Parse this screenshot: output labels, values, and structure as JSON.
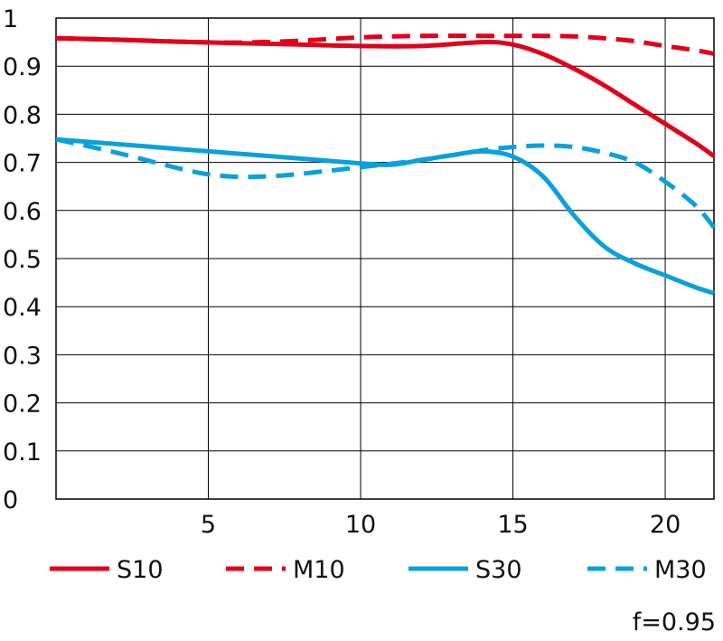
{
  "chart_data": {
    "type": "line",
    "xlim": [
      0,
      21.6
    ],
    "ylim": [
      0,
      1
    ],
    "x_ticks": [
      5,
      10,
      15,
      20
    ],
    "x_tick_labels": [
      "5",
      "10",
      "15",
      "20"
    ],
    "y_ticks": [
      0,
      0.1,
      0.2,
      0.3,
      0.4,
      0.5,
      0.6,
      0.7,
      0.8,
      0.9,
      1
    ],
    "y_tick_labels": [
      "0",
      "0.1",
      "0.2",
      "0.3",
      "0.4",
      "0.5",
      "0.6",
      "0.7",
      "0.8",
      "0.9",
      "1"
    ],
    "grid": true,
    "legend_position": "bottom",
    "note": "f=0.95",
    "series": [
      {
        "name": "S10",
        "color": "#e2001a",
        "dash": "solid",
        "x": [
          0,
          2,
          4,
          6,
          8,
          10,
          12,
          14,
          15,
          16,
          17,
          18,
          19,
          20,
          21,
          21.6
        ],
        "y": [
          0.958,
          0.955,
          0.951,
          0.948,
          0.945,
          0.942,
          0.942,
          0.95,
          0.945,
          0.925,
          0.895,
          0.86,
          0.82,
          0.78,
          0.74,
          0.713
        ]
      },
      {
        "name": "M10",
        "color": "#e2001a",
        "dash": "dashed",
        "x": [
          0,
          2,
          4,
          6,
          8,
          10,
          12,
          14,
          15,
          16,
          17,
          18,
          19,
          20,
          21,
          21.6
        ],
        "y": [
          0.958,
          0.955,
          0.951,
          0.949,
          0.953,
          0.96,
          0.963,
          0.963,
          0.963,
          0.963,
          0.962,
          0.958,
          0.952,
          0.942,
          0.933,
          0.926
        ]
      },
      {
        "name": "S30",
        "color": "#0aa0dc",
        "dash": "solid",
        "x": [
          0,
          2,
          4,
          6,
          8,
          10,
          11,
          12,
          13,
          14,
          15,
          16,
          17,
          18,
          19,
          20,
          21,
          21.6
        ],
        "y": [
          0.748,
          0.738,
          0.728,
          0.718,
          0.708,
          0.698,
          0.695,
          0.705,
          0.715,
          0.723,
          0.712,
          0.67,
          0.59,
          0.525,
          0.49,
          0.465,
          0.44,
          0.428
        ]
      },
      {
        "name": "M30",
        "color": "#0aa0dc",
        "dash": "dashed",
        "x": [
          0,
          2,
          4,
          5,
          6,
          7,
          8,
          10,
          12,
          14,
          15,
          16,
          17,
          18,
          19,
          20,
          21,
          21.6
        ],
        "y": [
          0.748,
          0.72,
          0.688,
          0.675,
          0.67,
          0.671,
          0.676,
          0.69,
          0.705,
          0.725,
          0.732,
          0.735,
          0.732,
          0.72,
          0.7,
          0.66,
          0.61,
          0.565
        ]
      }
    ]
  }
}
